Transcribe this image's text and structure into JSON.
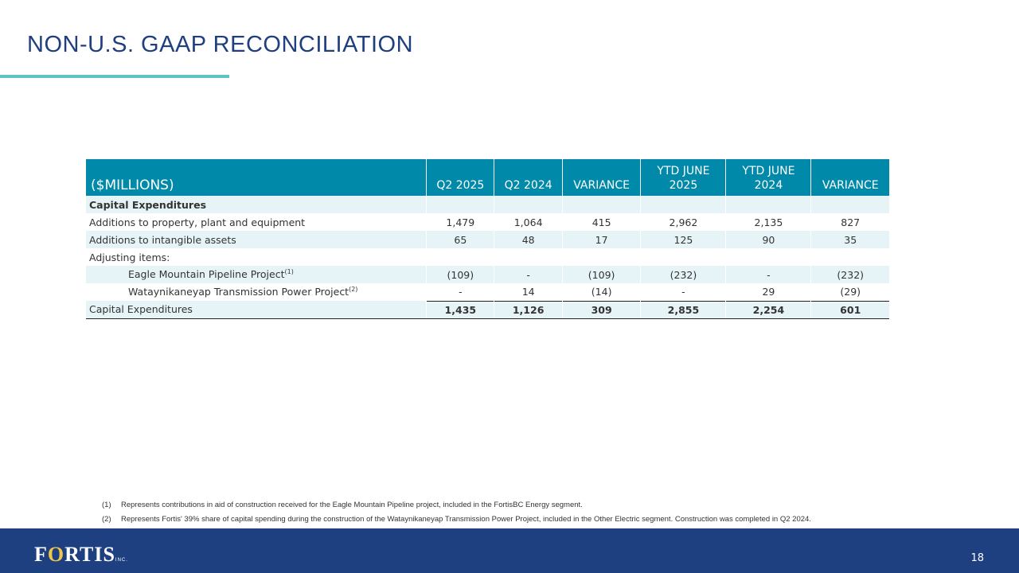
{
  "title": "NON-U.S. GAAP RECONCILIATION",
  "table": {
    "headers": [
      "($MILLIONS)",
      "Q2 2025",
      "Q2 2024",
      "VARIANCE",
      "YTD JUNE 2025",
      "YTD JUNE 2024",
      "VARIANCE"
    ],
    "rows": [
      {
        "label": "Capital Expenditures",
        "values": [
          "",
          "",
          "",
          "",
          "",
          ""
        ]
      },
      {
        "label": "Additions to property, plant and equipment",
        "values": [
          "1,479",
          "1,064",
          "415",
          "2,962",
          "2,135",
          "827"
        ]
      },
      {
        "label": "Additions to intangible assets",
        "values": [
          "65",
          "48",
          "17",
          "125",
          "90",
          "35"
        ]
      },
      {
        "label": "Adjusting items:",
        "values": [
          "",
          "",
          "",
          "",
          "",
          ""
        ]
      },
      {
        "label": "Eagle Mountain Pipeline Project",
        "sup": "(1)",
        "values": [
          "(109)",
          "-",
          "(109)",
          "(232)",
          "-",
          "(232)"
        ]
      },
      {
        "label": "Wataynikaneyap Transmission Power Project",
        "sup": "(2)",
        "values": [
          "-",
          "14",
          "(14)",
          "-",
          "29",
          "(29)"
        ]
      },
      {
        "label": "Capital Expenditures",
        "values": [
          "1,435",
          "1,126",
          "309",
          "2,855",
          "2,254",
          "601"
        ]
      }
    ]
  },
  "notes": [
    {
      "num": "(1)",
      "text": "Represents contributions in aid of construction received for the Eagle Mountain Pipeline project, included in the FortisBC Energy segment."
    },
    {
      "num": "(2)",
      "text": "Represents Fortis' 39% share of capital spending during the construction of the Wataynikaneyap Transmission Power Project, included in the Other Electric segment. Construction was completed in Q2 2024."
    }
  ],
  "footer": {
    "logo": "FORTIS",
    "logo_suffix": "INC.",
    "page": "18"
  },
  "colors": {
    "header": "#0089a8",
    "title": "#1f3f7e",
    "footer": "#1f4080",
    "accent": "#5cc4c8"
  }
}
